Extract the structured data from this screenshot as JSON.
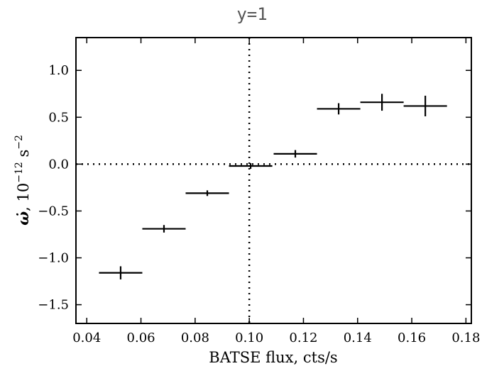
{
  "chart_data": {
    "type": "scatter",
    "title": "y=1",
    "xlabel": "BATSE flux, cts/s",
    "ylabel_parts": {
      "symbol": "ω̇",
      "comma": ", 10",
      "exp1": "−12",
      "unit": " s",
      "exp2": "−2"
    },
    "xlim": [
      0.036,
      0.182
    ],
    "ylim": [
      -1.7,
      1.35
    ],
    "xticks": [
      0.04,
      0.06,
      0.08,
      0.1,
      0.12,
      0.14,
      0.16,
      0.18
    ],
    "xtick_labels": [
      "0.04",
      "0.06",
      "0.08",
      "0.10",
      "0.12",
      "0.14",
      "0.16",
      "0.18"
    ],
    "yticks": [
      1.0,
      0.5,
      0.0,
      -0.5,
      -1.0,
      -1.5
    ],
    "ytick_labels": [
      "1.0",
      "0.5",
      "0.0",
      "−0.5",
      "−1.0",
      "−1.5"
    ],
    "reference_lines": {
      "x": 0.1,
      "y": 0.0,
      "style": "dotted"
    },
    "grid": false,
    "points": [
      {
        "x": 0.0525,
        "xerr": 0.008,
        "y": -1.16,
        "yerr": 0.07
      },
      {
        "x": 0.0685,
        "xerr": 0.008,
        "y": -0.69,
        "yerr": 0.04
      },
      {
        "x": 0.0845,
        "xerr": 0.008,
        "y": -0.31,
        "yerr": 0.03
      },
      {
        "x": 0.1005,
        "xerr": 0.008,
        "y": -0.02,
        "yerr": 0.03
      },
      {
        "x": 0.117,
        "xerr": 0.008,
        "y": 0.11,
        "yerr": 0.04
      },
      {
        "x": 0.133,
        "xerr": 0.008,
        "y": 0.59,
        "yerr": 0.06
      },
      {
        "x": 0.149,
        "xerr": 0.008,
        "y": 0.66,
        "yerr": 0.09
      },
      {
        "x": 0.165,
        "xerr": 0.008,
        "y": 0.62,
        "yerr": 0.11
      }
    ]
  }
}
